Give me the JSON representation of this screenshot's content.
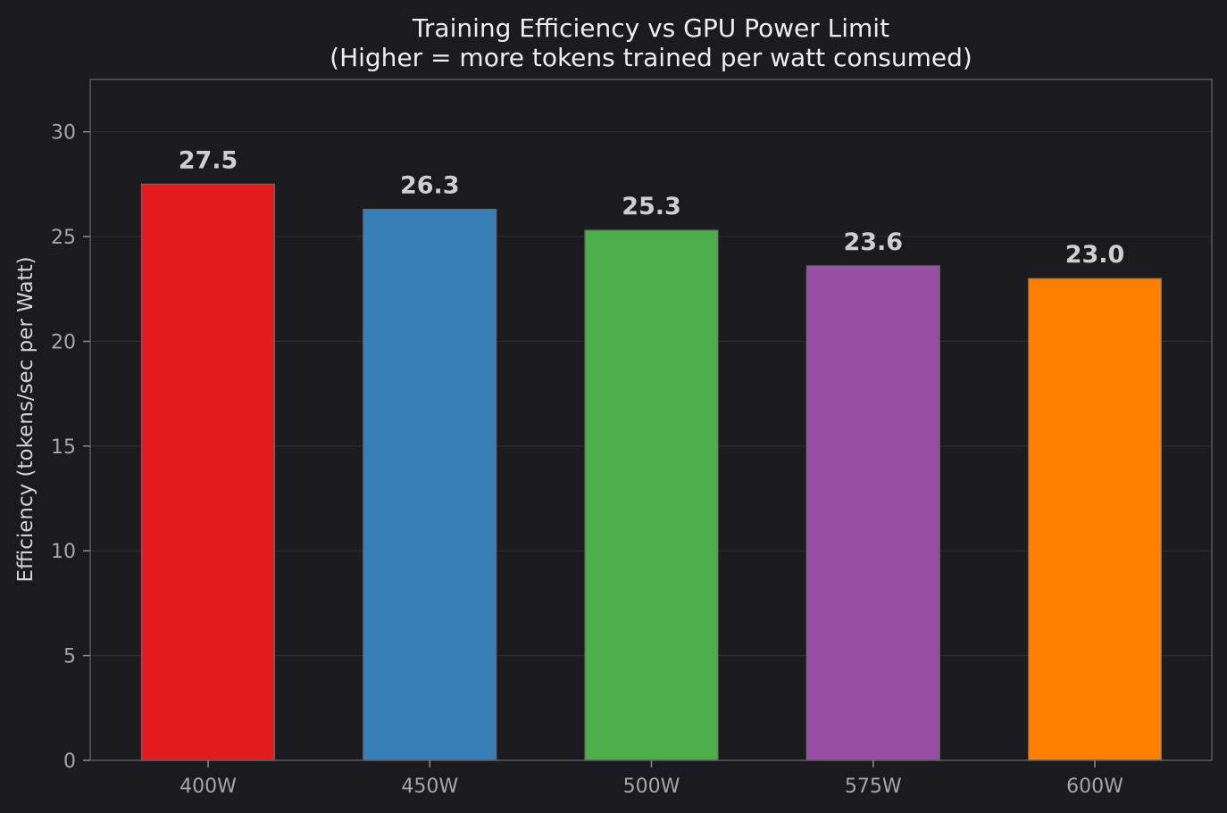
{
  "chart_data": {
    "type": "bar",
    "title": "Training Efficiency vs GPU Power Limit",
    "subtitle": "(Higher = more tokens trained per watt consumed)",
    "xlabel": "",
    "ylabel": "Efficiency (tokens/sec per Watt)",
    "categories": [
      "400W",
      "450W",
      "500W",
      "575W",
      "600W"
    ],
    "values": [
      27.5,
      26.3,
      25.3,
      23.6,
      23.0
    ],
    "value_labels": [
      "27.5",
      "26.3",
      "25.3",
      "23.6",
      "23.0"
    ],
    "colors": [
      "#e41a1c",
      "#377eb8",
      "#4daf4a",
      "#984ea3",
      "#ff7f00"
    ],
    "ylim": [
      0,
      32.5
    ],
    "yticks": [
      0,
      5,
      10,
      15,
      20,
      25,
      30
    ],
    "grid": true,
    "legend": "none",
    "theme": {
      "background": "#1b1a1f",
      "plot_background": "#1b1a1f",
      "frame": "#5a5a5e",
      "grid": "#2e2d32",
      "bar_edge": "#6a6a6a"
    }
  }
}
